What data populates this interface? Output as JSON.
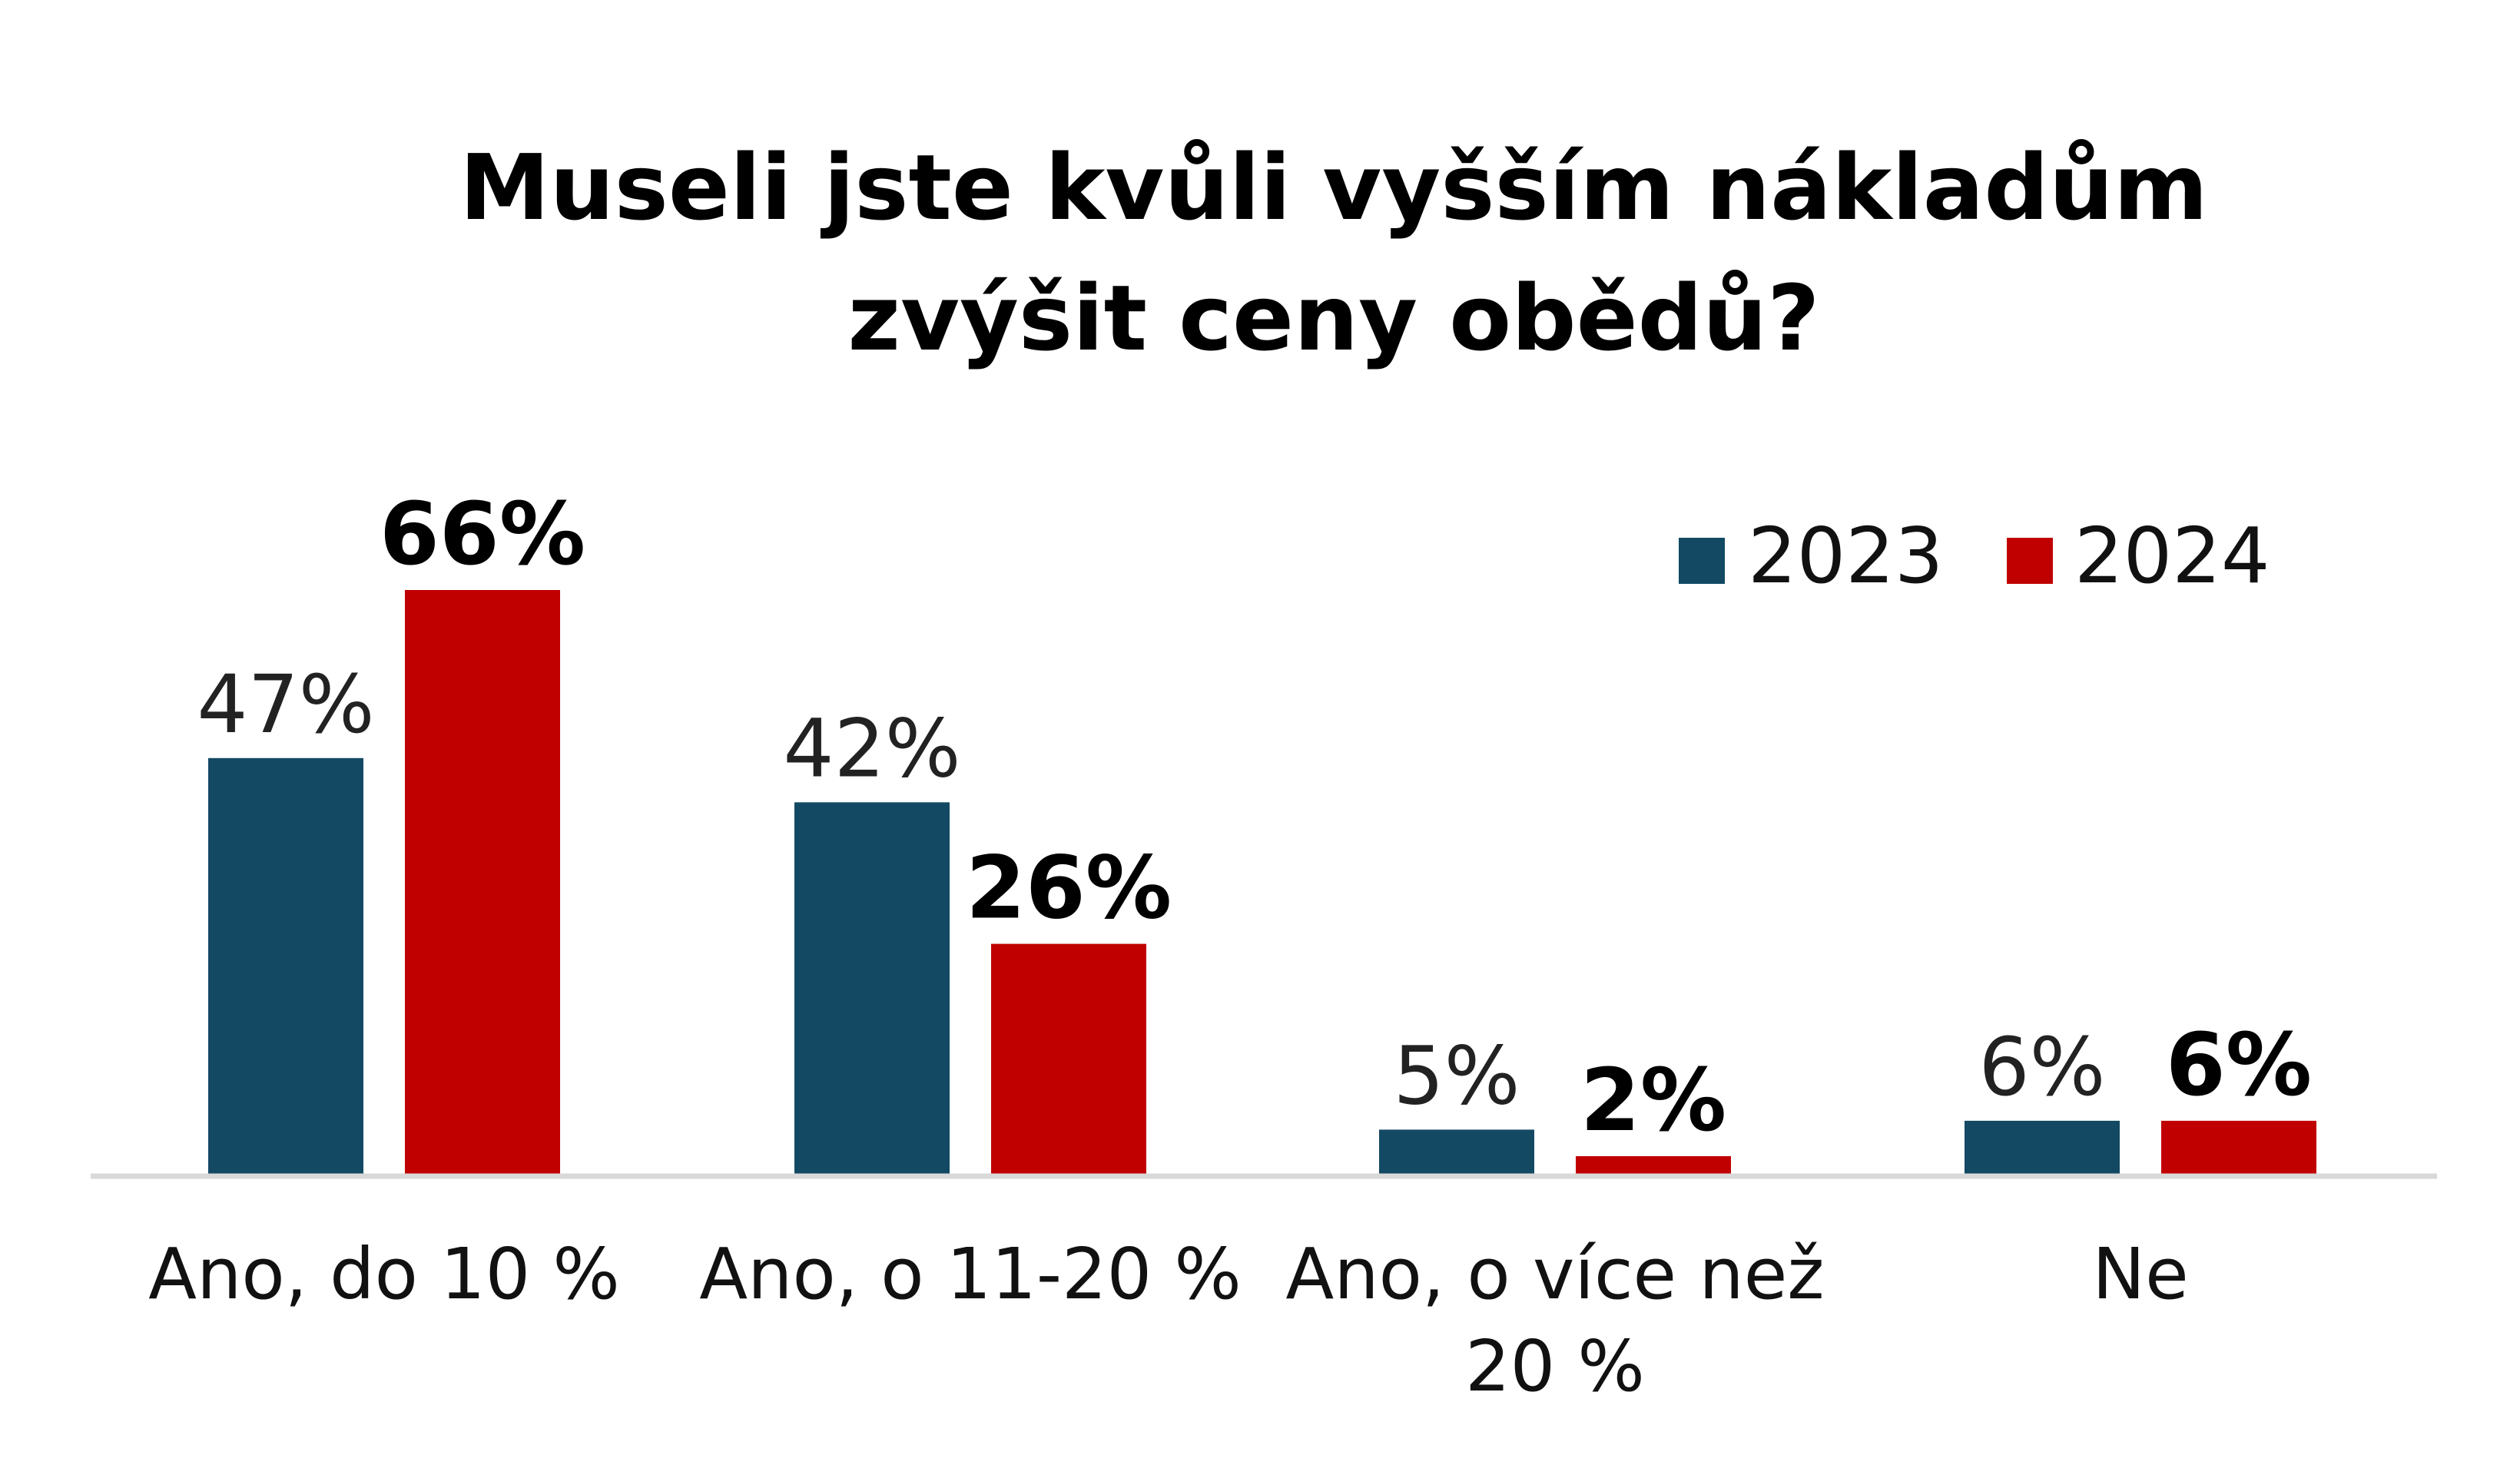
{
  "chart_data": {
    "type": "bar",
    "title_lines": [
      "Museli jste kvůli vyšším nákladům",
      "zvýšit ceny obědů?"
    ],
    "categories": [
      "Ano, do 10 %",
      "Ano, o 11-20 %",
      "Ano, o více než 20 %",
      "Ne"
    ],
    "category_label_lines": [
      [
        "Ano, do 10 %"
      ],
      [
        "Ano, o 11-20 %"
      ],
      [
        "Ano, o více než",
        "20 %"
      ],
      [
        "Ne"
      ]
    ],
    "series": [
      {
        "name": "2023",
        "color": "#134963",
        "values": [
          47,
          42,
          5,
          6
        ],
        "labels": [
          "47%",
          "42%",
          "5%",
          "6%"
        ]
      },
      {
        "name": "2024",
        "color": "#C00000",
        "values": [
          66,
          26,
          2,
          6
        ],
        "labels": [
          "66%",
          "26%",
          "2%",
          "6%"
        ]
      }
    ],
    "ylim": [
      0,
      66
    ],
    "grid": false,
    "legend_position": "top-right",
    "axis_color": "#D9D9D9"
  }
}
